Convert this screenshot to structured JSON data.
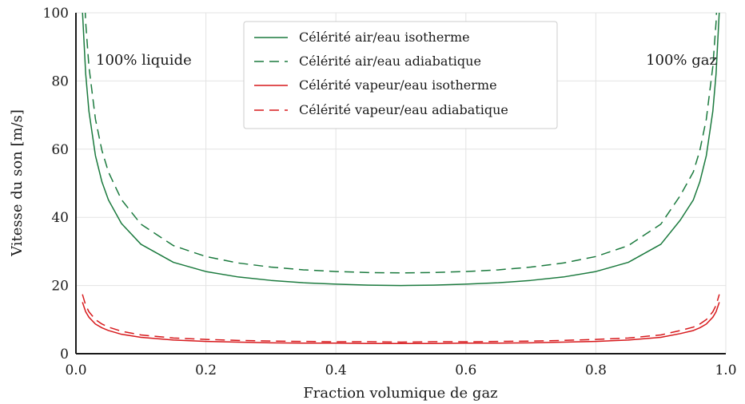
{
  "chart_data": {
    "type": "line",
    "xlabel": "Fraction volumique de gaz",
    "ylabel": "Vitesse du son [m/s]",
    "xlim": [
      0.0,
      1.0
    ],
    "ylim": [
      0,
      100
    ],
    "xticks": [
      0.0,
      0.2,
      0.4,
      0.6,
      0.8,
      1.0
    ],
    "xtick_labels": [
      "0.0",
      "0.2",
      "0.4",
      "0.6",
      "0.8",
      "1.0"
    ],
    "yticks": [
      0,
      20,
      40,
      60,
      80,
      100
    ],
    "ytick_labels": [
      "0",
      "20",
      "40",
      "60",
      "80",
      "100"
    ],
    "grid": true,
    "legend_position": "top-center",
    "annotations": [
      {
        "text": "100% liquide",
        "position": "top-left"
      },
      {
        "text": "100% gaz",
        "position": "top-right"
      }
    ],
    "x": [
      0.01,
      0.015,
      0.02,
      0.03,
      0.04,
      0.05,
      0.07,
      0.1,
      0.15,
      0.2,
      0.25,
      0.3,
      0.35,
      0.4,
      0.45,
      0.5,
      0.55,
      0.6,
      0.65,
      0.7,
      0.75,
      0.8,
      0.85,
      0.9,
      0.93,
      0.95,
      0.96,
      0.97,
      0.98,
      0.985,
      0.99
    ],
    "series": [
      {
        "name": "Célérité air/eau isotherme",
        "color": "#1b7a3e",
        "dash": "solid",
        "values": [
          100.5,
          82.1,
          71.1,
          58.1,
          50.4,
          45.1,
          38.2,
          32.1,
          26.8,
          24.1,
          22.5,
          21.5,
          20.8,
          20.4,
          20.1,
          20.0,
          20.1,
          20.4,
          20.8,
          21.5,
          22.5,
          24.1,
          26.8,
          32.1,
          39.2,
          45.1,
          50.4,
          58.1,
          71.1,
          82.1,
          100.5
        ]
      },
      {
        "name": "Célérité air/eau adiabatique",
        "color": "#1b7a3e",
        "dash": "dashed",
        "values": [
          119.0,
          97.2,
          84.2,
          68.8,
          59.6,
          53.3,
          45.2,
          38.0,
          31.7,
          28.5,
          26.6,
          25.4,
          24.6,
          24.1,
          23.8,
          23.7,
          23.8,
          24.1,
          24.6,
          25.4,
          26.6,
          28.5,
          31.7,
          38.0,
          46.4,
          53.3,
          59.6,
          68.8,
          84.2,
          97.2,
          119.0
        ]
      },
      {
        "name": "Célérité vapeur/eau isotherme",
        "color": "#d7191c",
        "dash": "solid",
        "values": [
          15.1,
          12.3,
          10.7,
          8.7,
          7.6,
          6.8,
          5.7,
          4.8,
          4.0,
          3.6,
          3.4,
          3.2,
          3.1,
          3.1,
          3.0,
          3.0,
          3.0,
          3.1,
          3.1,
          3.2,
          3.4,
          3.6,
          4.0,
          4.8,
          5.9,
          6.8,
          7.6,
          8.7,
          10.7,
          12.3,
          15.1
        ]
      },
      {
        "name": "Célérité vapeur/eau adiabatique",
        "color": "#d7191c",
        "dash": "dashed",
        "values": [
          17.4,
          14.2,
          12.3,
          10.0,
          8.7,
          7.8,
          6.6,
          5.5,
          4.6,
          4.2,
          3.9,
          3.7,
          3.6,
          3.5,
          3.5,
          3.4,
          3.5,
          3.5,
          3.6,
          3.7,
          3.9,
          4.2,
          4.6,
          5.5,
          6.8,
          7.8,
          8.7,
          10.0,
          12.3,
          14.2,
          17.4
        ]
      }
    ]
  }
}
